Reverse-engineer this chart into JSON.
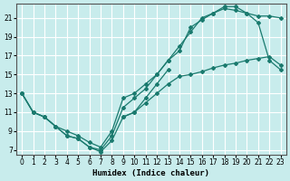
{
  "xlabel": "Humidex (Indice chaleur)",
  "background_color": "#c8ecec",
  "grid_color": "#ffffff",
  "line_color": "#1a7a6e",
  "xlim": [
    -0.5,
    23.5
  ],
  "ylim": [
    6.5,
    22.5
  ],
  "xticks": [
    0,
    1,
    2,
    3,
    4,
    5,
    6,
    7,
    8,
    9,
    10,
    11,
    12,
    13,
    14,
    15,
    16,
    17,
    18,
    19,
    20,
    21,
    22,
    23
  ],
  "yticks": [
    7,
    9,
    11,
    13,
    15,
    17,
    19,
    21
  ],
  "series1_x": [
    0,
    1,
    2,
    3,
    4,
    5,
    6,
    7,
    8,
    9,
    10,
    11,
    12,
    13,
    14,
    15,
    16,
    17,
    18,
    19,
    20,
    21,
    22,
    23
  ],
  "series1_y": [
    13,
    11,
    10.5,
    9.5,
    8.5,
    8.2,
    7.3,
    7.0,
    8.5,
    11.5,
    12.5,
    13.5,
    15.0,
    16.5,
    18.0,
    19.5,
    21.0,
    21.5,
    22.0,
    21.8,
    21.5,
    21.2,
    21.2,
    21.0
  ],
  "series2_x": [
    0,
    1,
    2,
    3,
    4,
    5,
    6,
    7,
    8,
    9,
    10,
    11,
    12,
    13,
    14,
    15,
    16,
    17,
    18,
    19,
    20,
    21,
    22,
    23
  ],
  "series2_y": [
    13,
    11,
    10.5,
    9.5,
    9.0,
    8.5,
    7.8,
    7.3,
    9.0,
    12.5,
    13.0,
    14.0,
    15.0,
    16.5,
    17.5,
    20.0,
    20.8,
    21.5,
    22.2,
    22.2,
    21.5,
    20.5,
    16.5,
    15.5
  ],
  "series3_x": [
    0,
    1,
    2,
    3,
    4,
    5,
    6,
    7,
    8,
    9,
    10,
    11,
    12,
    13
  ],
  "series3_y": [
    13,
    11,
    10.5,
    9.5,
    8.5,
    8.2,
    7.3,
    6.8,
    8.0,
    10.5,
    11.0,
    12.5,
    14.0,
    15.5
  ],
  "series3b_x": [
    9,
    10,
    11,
    12,
    13,
    14,
    15,
    16,
    17,
    18,
    19,
    20,
    21,
    22,
    23
  ],
  "series3b_y": [
    10.5,
    11.0,
    12.0,
    13.0,
    14.0,
    14.8,
    15.0,
    15.3,
    15.7,
    16.0,
    16.2,
    16.5,
    16.7,
    16.9,
    16.0
  ]
}
